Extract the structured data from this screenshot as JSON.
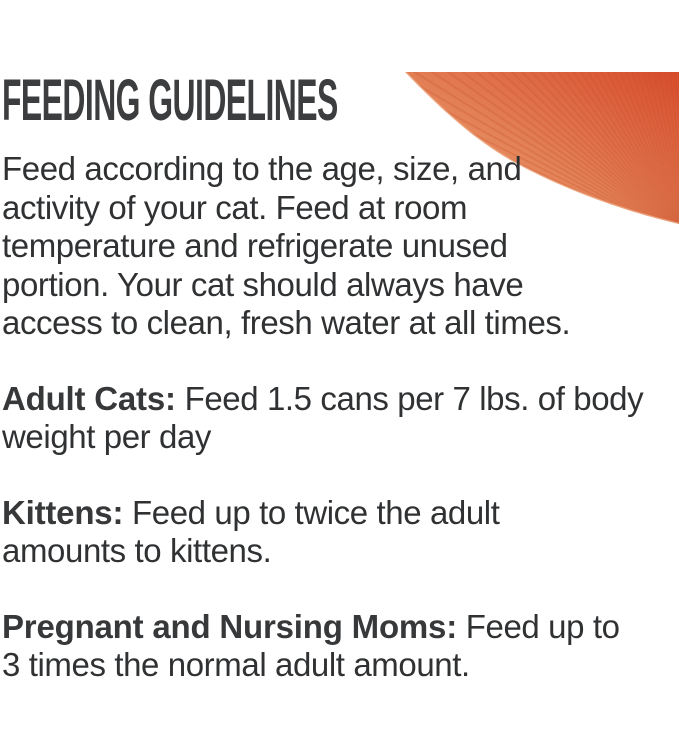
{
  "title": "FEEDING GUIDELINES",
  "sections": [
    {
      "id": "intro",
      "bold": "",
      "text": "Feed according to the age, size, and\nactivity of your cat. Feed at room\ntemperature and refrigerate unused\nportion. Your cat should always have\naccess to clean, fresh water at all times."
    },
    {
      "id": "adult-cats",
      "bold": "Adult Cats:",
      "text": " Feed 1.5 cans per 7 lbs. of body\nweight per day"
    },
    {
      "id": "kittens",
      "bold": "Kittens:",
      "text": " Feed up to twice the adult\namounts to kittens."
    },
    {
      "id": "pregnant-nursing-moms",
      "bold": "Pregnant and Nursing Moms:",
      "text": " Feed up to\n3 times the normal adult amount."
    }
  ],
  "colors": {
    "title": "#3c3d3f",
    "body": "#2f3133",
    "bold": "#37383a",
    "background": "#ffffff",
    "sunburst_light": "#f0a678",
    "sunburst_mid": "#e4855a",
    "sunburst_dark": "#d74c2b",
    "sunburst_ray": "#c9502e",
    "sunburst_rim": "#f4bb96"
  }
}
